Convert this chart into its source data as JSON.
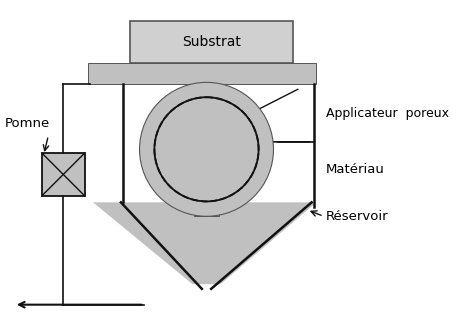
{
  "bg_color": "#ffffff",
  "substrat_label": "Substrat",
  "label_pompe": "Pomne",
  "label_applicateur": "Applicateur  poreux",
  "label_materiau": "Matériau",
  "label_reservoir": "Réservoir",
  "gray_light": "#d0d0d0",
  "gray_mid": "#c0c0c0",
  "gray_dark": "#555555",
  "black": "#111111"
}
